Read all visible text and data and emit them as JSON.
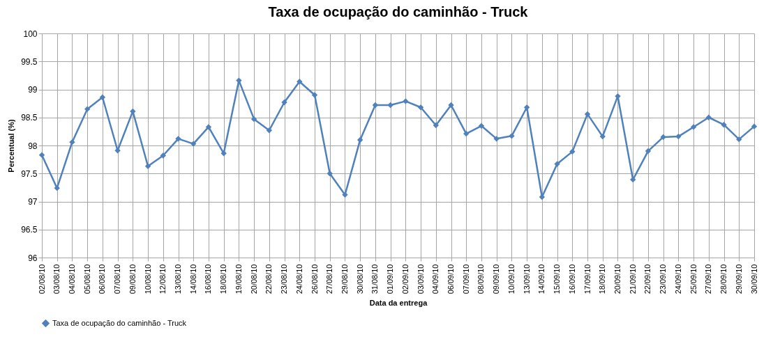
{
  "chart_data": {
    "type": "line",
    "title": "Taxa de ocupação do caminhão - Truck",
    "xlabel": "Data da entrega",
    "ylabel": "Percentual (%)",
    "categories": [
      "02/08/10",
      "03/08/10",
      "04/08/10",
      "05/08/10",
      "06/08/10",
      "07/08/10",
      "09/08/10",
      "10/08/10",
      "12/08/10",
      "13/08/10",
      "14/08/10",
      "16/08/10",
      "18/08/10",
      "19/08/10",
      "20/08/10",
      "22/08/10",
      "23/08/10",
      "24/08/10",
      "26/08/10",
      "27/08/10",
      "29/08/10",
      "30/08/10",
      "31/08/10",
      "01/09/10",
      "02/09/10",
      "03/09/10",
      "04/09/10",
      "06/09/10",
      "07/09/10",
      "08/09/10",
      "09/09/10",
      "10/09/10",
      "13/09/10",
      "14/09/10",
      "15/09/10",
      "16/09/10",
      "17/09/10",
      "18/09/10",
      "20/09/10",
      "21/09/10",
      "22/09/10",
      "23/09/10",
      "24/09/10",
      "25/09/10",
      "27/09/10",
      "28/09/10",
      "29/09/10",
      "30/09/10"
    ],
    "series": [
      {
        "name": "Taxa de ocupação do caminhão - Truck",
        "color": "#4f81bd",
        "values": [
          97.83,
          97.24,
          98.06,
          98.65,
          98.86,
          97.91,
          98.61,
          97.63,
          97.82,
          98.12,
          98.03,
          98.33,
          97.86,
          99.16,
          98.47,
          98.27,
          98.77,
          99.14,
          98.9,
          97.5,
          97.12,
          98.1,
          98.72,
          98.72,
          98.79,
          98.68,
          98.36,
          98.72,
          98.21,
          98.35,
          98.12,
          98.17,
          98.68,
          97.08,
          97.67,
          97.89,
          98.56,
          98.16,
          98.88,
          97.39,
          97.9,
          98.15,
          98.16,
          98.33,
          98.5,
          98.37,
          98.11,
          98.34
        ]
      }
    ],
    "ylim": [
      96,
      100
    ],
    "yticks": [
      96,
      96.5,
      97,
      97.5,
      98,
      98.5,
      99,
      99.5,
      100
    ],
    "grid": true,
    "legend": "bottom",
    "marker": "diamond",
    "line_style": "solid"
  }
}
